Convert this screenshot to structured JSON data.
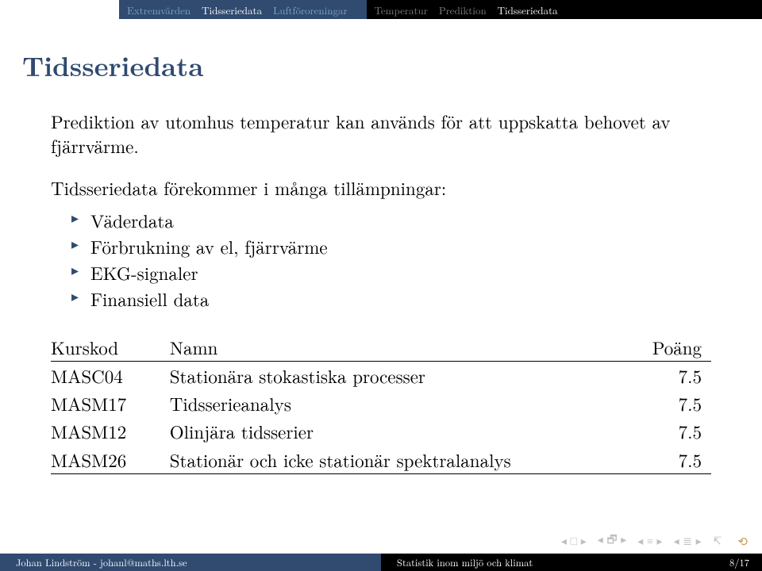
{
  "topnav": {
    "left_bg": "#304a70",
    "right_bg": "#000000",
    "left_inactive_color": "#7fa7c9",
    "right_inactive_color": "#808080",
    "active_color": "#ffffff",
    "left": [
      {
        "label": "Extremvärden",
        "active": false
      },
      {
        "label": "Tidsseriedata",
        "active": true
      },
      {
        "label": "Luftföroreningar",
        "active": false
      }
    ],
    "right": [
      {
        "label": "Temperatur",
        "active": false
      },
      {
        "label": "Prediktion",
        "active": false
      },
      {
        "label": "Tidsseriedata",
        "active": true
      }
    ]
  },
  "title": "Tidsseriedata",
  "title_color": "#304a70",
  "intro": "Prediktion av utomhus temperatur kan används för att uppskatta behovet av fjärrvärme.",
  "sub": "Tidsseriedata förekommer i många tillämpningar:",
  "bullets": [
    "Väderdata",
    "Förbrukning av el, fjärrvärme",
    "EKG-signaler",
    "Finansiell data"
  ],
  "bullet_marker_color": "#304a70",
  "table": {
    "headers": [
      "Kurskod",
      "Namn",
      "Poäng"
    ],
    "rows": [
      [
        "MASC04",
        "Stationära stokastiska processer",
        "7.5"
      ],
      [
        "MASM17",
        "Tidsserieanalys",
        "7.5"
      ],
      [
        "MASM12",
        "Olinjära tidsserier",
        "7.5"
      ],
      [
        "MASM26",
        "Stationär och icke stationär spektralanalys",
        "7.5"
      ]
    ]
  },
  "footer": {
    "left": "Johan Lindström - johanl@maths.lth.se",
    "right": "Statistik inom miljö och klimat",
    "page": "8/17",
    "left_bg": "#304a70",
    "right_bg": "#000000"
  }
}
